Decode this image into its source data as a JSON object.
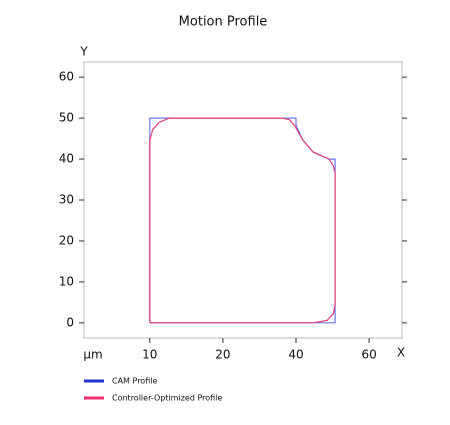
{
  "chart_data": {
    "type": "line",
    "title": "Motion Profile",
    "x_label": "X",
    "y_label": "Y",
    "unit_label": "µm",
    "xlim": [
      1,
      69
    ],
    "ylim": [
      -3.7,
      63.7
    ],
    "xticks": [
      10,
      20,
      40,
      60
    ],
    "yticks": [
      0,
      10,
      20,
      30,
      40,
      50,
      60
    ],
    "series": [
      {
        "name": "CAM Profile",
        "color": "#1f2fd0",
        "line_color": "#6b78e6",
        "x": [
          10,
          10,
          40,
          40,
          41.9,
          44.7,
          49,
          50.7,
          50.7,
          10
        ],
        "values": [
          0,
          50,
          50,
          48.3,
          44.6,
          41.7,
          40,
          40,
          0,
          0
        ]
      },
      {
        "name": "Controller-Optimized Profile",
        "color": "#f0306e",
        "line_color": "#e8407a",
        "x": [
          10,
          10,
          10.4,
          11.3,
          12.7,
          36.2,
          38.2,
          39.6,
          41.9,
          44.7,
          49,
          50.2,
          50.7,
          50.7,
          50.2,
          48.5,
          44.7,
          10
        ],
        "values": [
          0,
          44.5,
          47.2,
          49,
          50,
          50,
          49.6,
          48.2,
          44.6,
          41.7,
          40,
          38.4,
          36.6,
          4.4,
          2.2,
          0.6,
          0,
          0
        ]
      }
    ]
  }
}
